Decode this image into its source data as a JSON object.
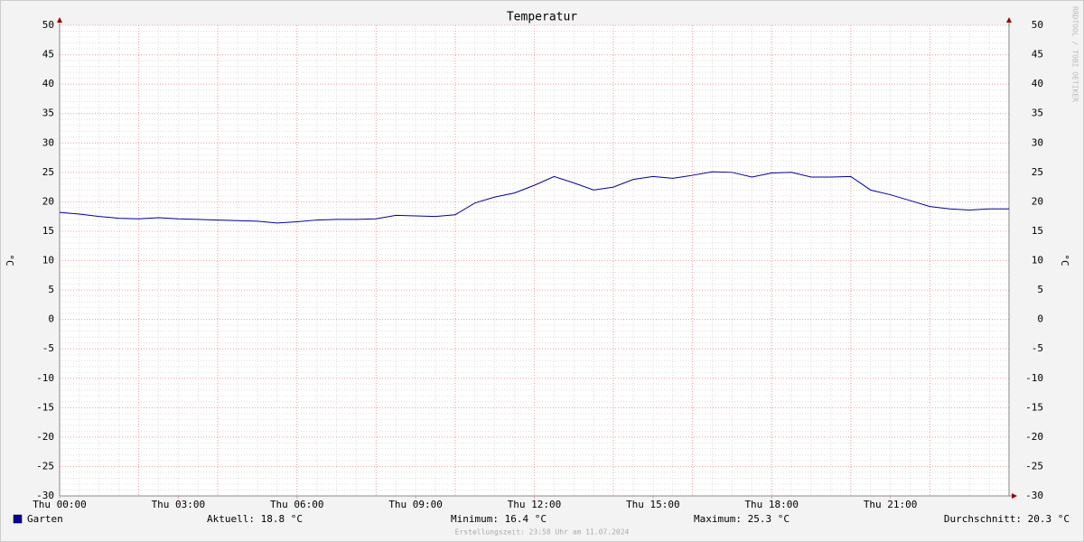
{
  "chart_data": {
    "type": "line",
    "title": "Temperatur",
    "y_label": "°C",
    "y2_label": "°C",
    "watermark": "RRDTOOL / TOBI OETIKER",
    "footer": "Erstellungszeit: 23:58 Uhr am 11.07.2024",
    "stats": [
      "Aktuell: 18.8 °C",
      "Minimum: 16.4 °C",
      "Maximum: 25.3 °C",
      "Durchschnitt: 20.3 °C"
    ],
    "x": [
      0,
      0.5,
      1,
      1.5,
      2,
      2.5,
      3,
      3.5,
      4,
      4.5,
      5,
      5.5,
      6,
      6.5,
      7,
      7.5,
      8,
      8.5,
      9,
      9.5,
      10,
      10.5,
      11,
      11.5,
      12,
      12.5,
      13,
      13.5,
      14,
      14.5,
      15,
      15.5,
      16,
      16.5,
      17,
      17.5,
      18,
      18.5,
      19,
      19.5,
      20,
      20.5,
      21,
      21.5,
      22,
      22.5,
      23,
      23.5,
      24
    ],
    "series": [
      {
        "name": "Garten",
        "color": "#000099",
        "values": [
          18.2,
          17.9,
          17.5,
          17.2,
          17.1,
          17.3,
          17.1,
          17.0,
          16.9,
          16.8,
          16.7,
          16.4,
          16.6,
          16.9,
          17.0,
          17.0,
          17.1,
          17.7,
          17.6,
          17.5,
          17.8,
          19.8,
          20.8,
          21.5,
          22.8,
          24.3,
          23.2,
          22.0,
          22.5,
          23.8,
          24.3,
          24.0,
          24.5,
          25.1,
          25.0,
          24.2,
          24.9,
          25.0,
          24.2,
          24.2,
          24.3,
          22.0,
          21.2,
          20.2,
          19.2,
          18.8,
          18.6,
          18.8,
          18.8
        ]
      }
    ],
    "xlim": [
      0,
      24
    ],
    "xticks": [
      {
        "value": 0,
        "label": "Thu 00:00"
      },
      {
        "value": 3,
        "label": "Thu 03:00"
      },
      {
        "value": 6,
        "label": "Thu 06:00"
      },
      {
        "value": 9,
        "label": "Thu 09:00"
      },
      {
        "value": 12,
        "label": "Thu 12:00"
      },
      {
        "value": 15,
        "label": "Thu 15:00"
      },
      {
        "value": 18,
        "label": "Thu 18:00"
      },
      {
        "value": 21,
        "label": "Thu 21:00"
      }
    ],
    "ylim": [
      -30,
      50
    ],
    "yticks": [
      -30,
      -25,
      -20,
      -15,
      -10,
      -5,
      0,
      5,
      10,
      15,
      20,
      25,
      30,
      35,
      40,
      45,
      50
    ],
    "grid": true
  }
}
